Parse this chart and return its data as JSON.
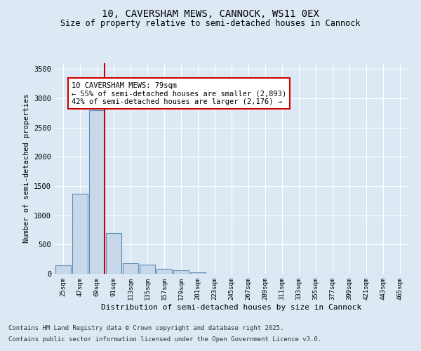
{
  "title_line1": "10, CAVERSHAM MEWS, CANNOCK, WS11 0EX",
  "title_line2": "Size of property relative to semi-detached houses in Cannock",
  "xlabel": "Distribution of semi-detached houses by size in Cannock",
  "ylabel": "Number of semi-detached properties",
  "categories": [
    "25sqm",
    "47sqm",
    "69sqm",
    "91sqm",
    "113sqm",
    "135sqm",
    "157sqm",
    "179sqm",
    "201sqm",
    "223sqm",
    "245sqm",
    "267sqm",
    "289sqm",
    "311sqm",
    "333sqm",
    "355sqm",
    "377sqm",
    "399sqm",
    "421sqm",
    "443sqm",
    "465sqm"
  ],
  "values": [
    150,
    1370,
    2800,
    700,
    175,
    160,
    90,
    55,
    30,
    0,
    0,
    0,
    0,
    0,
    0,
    0,
    0,
    0,
    0,
    0,
    0
  ],
  "bar_color": "#c8d8e8",
  "bar_edge_color": "#5b8db8",
  "red_line_x": 2.45,
  "red_line_color": "#cc0000",
  "annotation_text_line1": "10 CAVERSHAM MEWS: 79sqm",
  "annotation_text_line2": "← 55% of semi-detached houses are smaller (2,893)",
  "annotation_text_line3": "42% of semi-detached houses are larger (2,176) →",
  "ylim": [
    0,
    3600
  ],
  "yticks": [
    0,
    500,
    1000,
    1500,
    2000,
    2500,
    3000,
    3500
  ],
  "background_color": "#dce9f5",
  "footer_line1": "Contains HM Land Registry data © Crown copyright and database right 2025.",
  "footer_line2": "Contains public sector information licensed under the Open Government Licence v3.0."
}
